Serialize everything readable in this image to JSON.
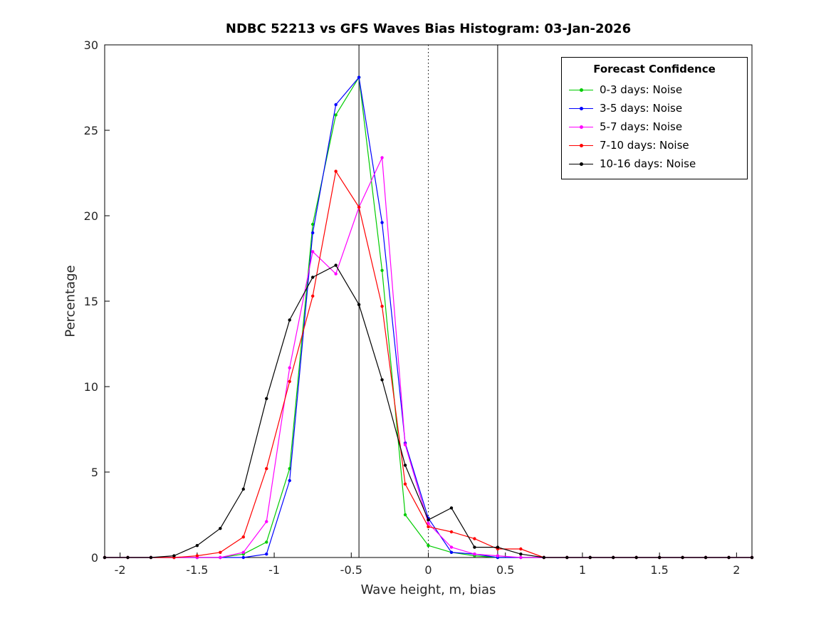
{
  "chart_data": {
    "type": "line",
    "title": "NDBC 52213 vs GFS Waves Bias Histogram: 03-Jan-2026",
    "xlabel": "Wave height, m, bias",
    "ylabel": "Percentage",
    "xlim": [
      -2.1,
      2.1
    ],
    "ylim": [
      0,
      30
    ],
    "xticks": [
      -2,
      -1.5,
      -1,
      -0.5,
      0,
      0.5,
      1,
      1.5,
      2
    ],
    "xtick_labels": [
      "-2",
      "-1.5",
      "-1",
      "-0.5",
      "0",
      "0.5",
      "1",
      "1.5",
      "2"
    ],
    "yticks": [
      0,
      5,
      10,
      15,
      20,
      25,
      30
    ],
    "ytick_labels": [
      "0",
      "5",
      "10",
      "15",
      "20",
      "25",
      "30"
    ],
    "grid": false,
    "legend_title": "Forecast Confidence",
    "legend_position": "top-right-inside",
    "vlines": [
      {
        "x": -0.45,
        "style": "solid",
        "color": "#000000"
      },
      {
        "x": 0,
        "style": "dotted",
        "color": "#000000"
      },
      {
        "x": 0.45,
        "style": "solid",
        "color": "#000000"
      }
    ],
    "x": [
      -2.1,
      -1.95,
      -1.8,
      -1.65,
      -1.5,
      -1.35,
      -1.2,
      -1.05,
      -0.9,
      -0.75,
      -0.6,
      -0.45,
      -0.3,
      -0.15,
      0,
      0.15,
      0.3,
      0.45,
      0.6,
      0.75,
      0.9,
      1.05,
      1.2,
      1.35,
      1.5,
      1.65,
      1.8,
      1.95,
      2.1
    ],
    "series": [
      {
        "name": "0-3 days: Noise",
        "color": "#00cc00",
        "values": [
          0,
          0,
          0,
          0,
          0,
          0,
          0.2,
          0.9,
          5.2,
          19.5,
          25.9,
          28.1,
          16.8,
          2.5,
          0.7,
          0.3,
          0.1,
          0,
          0,
          0,
          0,
          0,
          0,
          0,
          0,
          0,
          0,
          0,
          0
        ]
      },
      {
        "name": "3-5 days: Noise",
        "color": "#0000ff",
        "values": [
          0,
          0,
          0,
          0,
          0,
          0,
          0,
          0.2,
          4.5,
          19.0,
          26.5,
          28.1,
          19.6,
          6.7,
          2.3,
          0.3,
          0.2,
          0,
          0,
          0,
          0,
          0,
          0,
          0,
          0,
          0,
          0,
          0,
          0
        ]
      },
      {
        "name": "5-7 days: Noise",
        "color": "#ff00ff",
        "values": [
          0,
          0,
          0,
          0,
          0,
          0,
          0.3,
          2.1,
          11.1,
          17.9,
          16.6,
          20.5,
          23.4,
          6.6,
          2.0,
          0.6,
          0.2,
          0.1,
          0,
          0,
          0,
          0,
          0,
          0,
          0,
          0,
          0,
          0,
          0
        ]
      },
      {
        "name": "7-10 days: Noise",
        "color": "#ff0000",
        "values": [
          0,
          0,
          0,
          0,
          0.1,
          0.3,
          1.2,
          5.2,
          10.3,
          15.3,
          22.6,
          20.5,
          14.7,
          4.3,
          1.8,
          1.5,
          1.1,
          0.5,
          0.5,
          0,
          0,
          0,
          0,
          0,
          0,
          0,
          0,
          0,
          0
        ]
      },
      {
        "name": "10-16 days: Noise",
        "color": "#000000",
        "values": [
          0,
          0,
          0,
          0.1,
          0.7,
          1.7,
          4.0,
          9.3,
          13.9,
          16.4,
          17.1,
          14.8,
          10.4,
          5.4,
          2.2,
          2.9,
          0.6,
          0.6,
          0.2,
          0,
          0,
          0,
          0,
          0,
          0,
          0,
          0,
          0,
          0
        ]
      }
    ]
  }
}
